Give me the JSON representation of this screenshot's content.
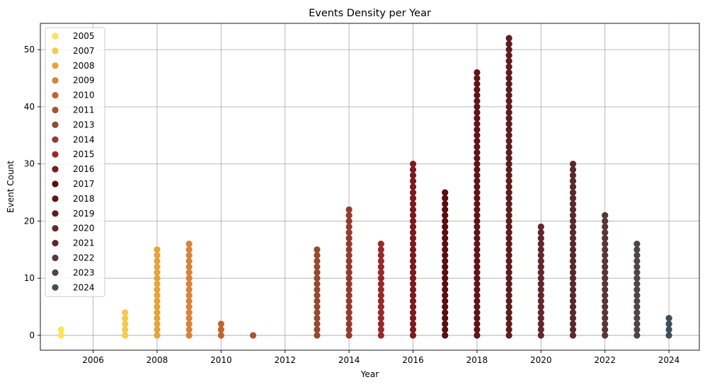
{
  "chart_data": {
    "type": "scatter",
    "title": "Events Density per Year",
    "xlabel": "Year",
    "ylabel": "Event Count",
    "xlim": [
      2004.35,
      2024.95
    ],
    "ylim": [
      -2.6,
      54.6
    ],
    "xticks": [
      "2006",
      "2008",
      "2010",
      "2012",
      "2014",
      "2016",
      "2018",
      "2020",
      "2022",
      "2024"
    ],
    "yticks": [
      "0",
      "10",
      "20",
      "30",
      "40",
      "50"
    ],
    "grid": true,
    "legend_position": "upper-left",
    "series": [
      {
        "name": "2005",
        "year": 2005,
        "max_count": 1,
        "color": "#fbe35a"
      },
      {
        "name": "2007",
        "year": 2007,
        "max_count": 4,
        "color": "#f5c94d"
      },
      {
        "name": "2008",
        "year": 2008,
        "max_count": 15,
        "color": "#e5a33c"
      },
      {
        "name": "2009",
        "year": 2009,
        "max_count": 16,
        "color": "#d6843a"
      },
      {
        "name": "2010",
        "year": 2010,
        "max_count": 2,
        "color": "#c0642e"
      },
      {
        "name": "2011",
        "year": 2011,
        "max_count": 0,
        "color": "#a9552e"
      },
      {
        "name": "2013",
        "year": 2013,
        "max_count": 15,
        "color": "#934a30"
      },
      {
        "name": "2014",
        "year": 2014,
        "max_count": 22,
        "color": "#923c2f"
      },
      {
        "name": "2015",
        "year": 2015,
        "max_count": 16,
        "color": "#962a2b"
      },
      {
        "name": "2016",
        "year": 2016,
        "max_count": 30,
        "color": "#7b1b1f"
      },
      {
        "name": "2017",
        "year": 2017,
        "max_count": 25,
        "color": "#580f0f"
      },
      {
        "name": "2018",
        "year": 2018,
        "max_count": 46,
        "color": "#5e1519"
      },
      {
        "name": "2019",
        "year": 2019,
        "max_count": 52,
        "color": "#5c1e1e"
      },
      {
        "name": "2020",
        "year": 2020,
        "max_count": 19,
        "color": "#62272a"
      },
      {
        "name": "2021",
        "year": 2021,
        "max_count": 30,
        "color": "#5a2a29"
      },
      {
        "name": "2022",
        "year": 2022,
        "max_count": 21,
        "color": "#593737"
      },
      {
        "name": "2023",
        "year": 2023,
        "max_count": 16,
        "color": "#4c4746"
      },
      {
        "name": "2024",
        "year": 2024,
        "max_count": 3,
        "color": "#3c4e58"
      }
    ]
  }
}
